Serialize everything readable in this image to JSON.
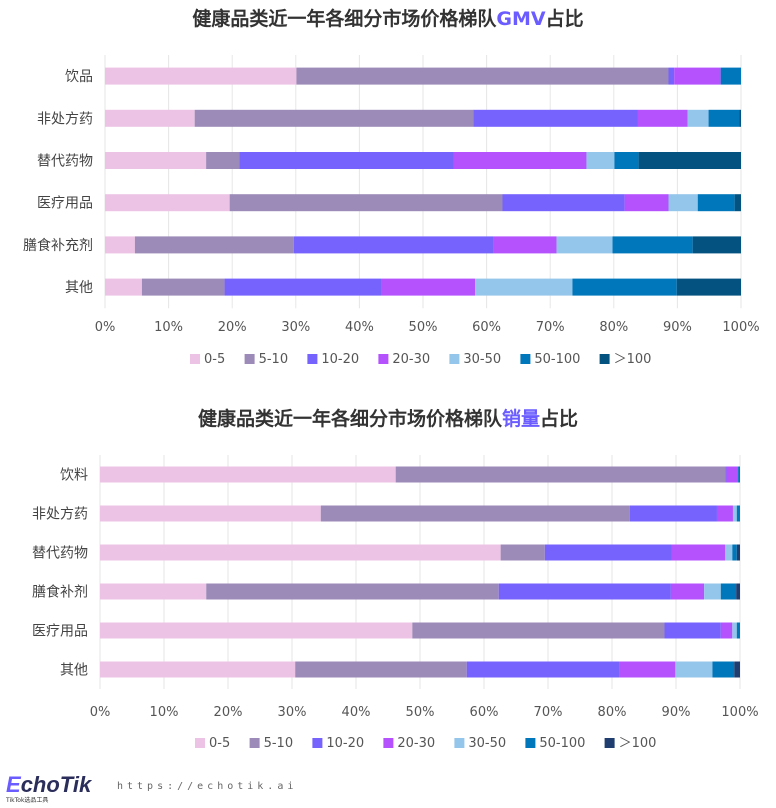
{
  "legend_labels": [
    "0-5",
    "5-10",
    "10-20",
    "20-30",
    "30-50",
    "50-100",
    "＞100"
  ],
  "colors": [
    "#edc3e5",
    "#9c8ab8",
    "#7662fd",
    "#b552fd",
    "#94c5ea",
    "#0077ba",
    "#03527f"
  ],
  "chart_data": [
    {
      "type": "bar",
      "orientation": "horizontal",
      "stacked": true,
      "title_prefix": "健康品类近一年各细分市场价格梯队",
      "title_highlight": "GMV",
      "title_suffix": "占比",
      "categories": [
        "饮品",
        "非处方药",
        "替代药物",
        "医疗用品",
        "膳食补充剂",
        "其他"
      ],
      "xlim": [
        0,
        100
      ],
      "xticks": [
        "0%",
        "10%",
        "20%",
        "30%",
        "40%",
        "50%",
        "60%",
        "70%",
        "80%",
        "90%",
        "100%"
      ],
      "grid": true,
      "legend": "bottom",
      "series": [
        {
          "name": "0-5",
          "values": [
            30.1,
            14.1,
            15.9,
            19.6,
            4.7,
            5.8
          ]
        },
        {
          "name": "5-10",
          "values": [
            58.5,
            43.8,
            5.2,
            42.9,
            25.0,
            13.0
          ]
        },
        {
          "name": "10-20",
          "values": [
            0.9,
            25.9,
            33.7,
            19.2,
            31.4,
            24.6
          ]
        },
        {
          "name": "20-30",
          "values": [
            7.3,
            7.8,
            20.9,
            6.9,
            9.9,
            14.8
          ]
        },
        {
          "name": "30-50",
          "values": [
            0,
            3.3,
            4.4,
            4.6,
            8.8,
            15.3
          ]
        },
        {
          "name": "50-100",
          "values": [
            3.2,
            4.8,
            3.8,
            5.8,
            12.6,
            16.4
          ]
        },
        {
          "name": "＞100",
          "values": [
            0,
            0.3,
            16.1,
            1.0,
            7.6,
            10.1
          ]
        }
      ]
    },
    {
      "type": "bar",
      "orientation": "horizontal",
      "stacked": true,
      "title_prefix": "健康品类近一年各细分市场价格梯队",
      "title_highlight": "销量",
      "title_suffix": "占比",
      "categories": [
        "饮料",
        "非处方药",
        "替代药物",
        "膳食补剂",
        "医疗用品",
        "其他"
      ],
      "xlim": [
        0,
        100
      ],
      "xticks": [
        "0%",
        "10%",
        "20%",
        "30%",
        "40%",
        "50%",
        "60%",
        "70%",
        "80%",
        "90%",
        "100%"
      ],
      "grid": true,
      "legend": "bottom",
      "series": [
        {
          "name": "0-5",
          "values": [
            46.2,
            34.5,
            62.6,
            16.6,
            48.8,
            30.5
          ]
        },
        {
          "name": "5-10",
          "values": [
            51.5,
            48.3,
            6.9,
            45.7,
            39.4,
            26.8
          ]
        },
        {
          "name": "10-20",
          "values": [
            0.2,
            13.6,
            19.8,
            26.9,
            8.8,
            23.8
          ]
        },
        {
          "name": "20-30",
          "values": [
            1.8,
            2.5,
            8.4,
            5.2,
            1.8,
            8.8
          ]
        },
        {
          "name": "30-50",
          "values": [
            0,
            0.6,
            1.1,
            2.6,
            0.7,
            5.8
          ]
        },
        {
          "name": "50-100",
          "values": [
            0.3,
            0.5,
            0.7,
            2.4,
            0.5,
            3.4
          ]
        },
        {
          "name": "＞100",
          "values": [
            0,
            0,
            0.5,
            0.6,
            0,
            0.9
          ]
        }
      ]
    }
  ],
  "footer": {
    "logo": "EchoTik",
    "logo_sub": "TikTok选品工具",
    "url": "https://echotik.ai"
  }
}
